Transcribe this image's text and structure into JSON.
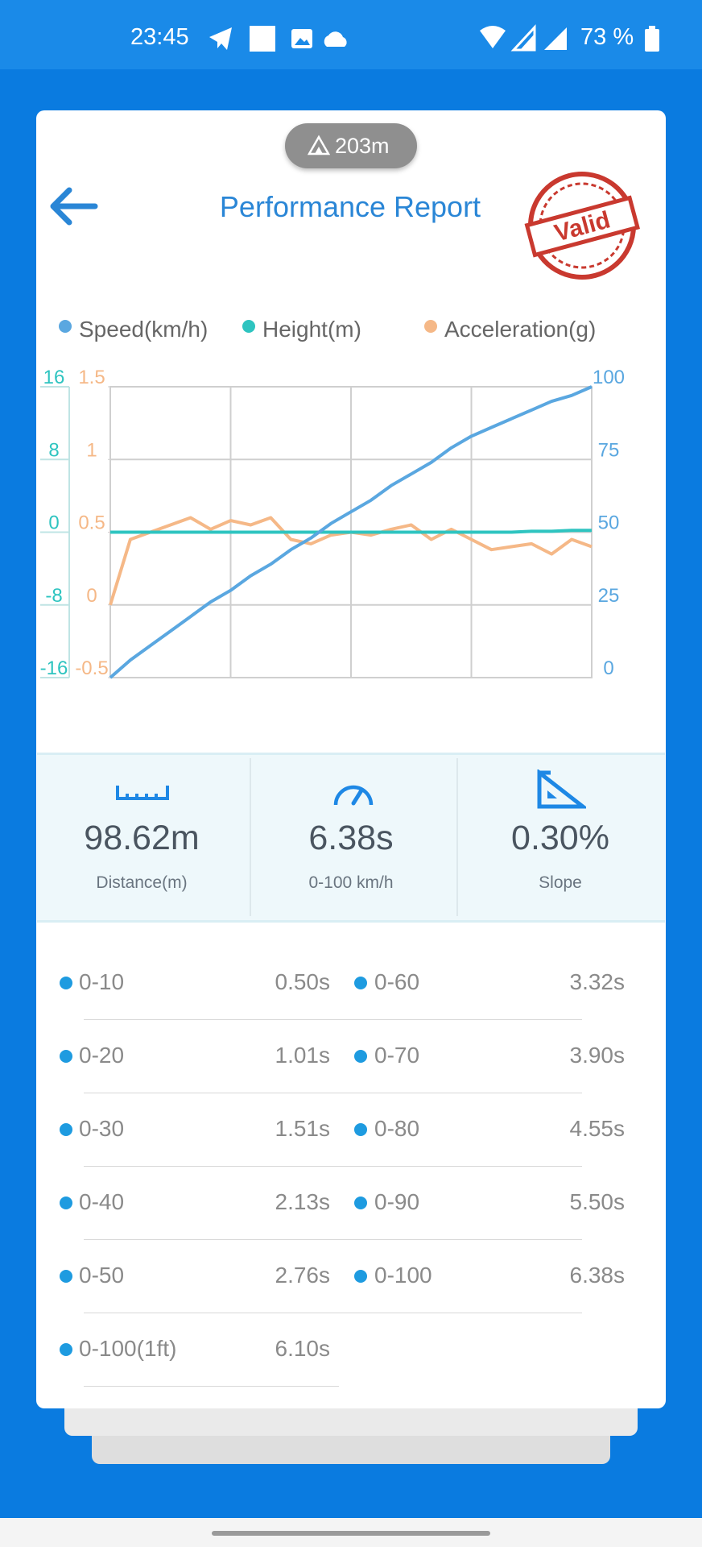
{
  "status_bar": {
    "time": "23:45",
    "battery": "73 %"
  },
  "header": {
    "altitude_badge": "203m",
    "title": "Performance Report",
    "stamp": "Valid"
  },
  "chart_data": {
    "type": "line",
    "series": [
      {
        "name": "Speed(km/h)",
        "color": "#5aa7e0",
        "axis": "y",
        "values": [
          0,
          6,
          11,
          16,
          21,
          26,
          30,
          35,
          39,
          44,
          48,
          53,
          57,
          61,
          66,
          70,
          74,
          79,
          83,
          86,
          89,
          92,
          95,
          97,
          100
        ]
      },
      {
        "name": "Height(m)",
        "color": "#2ec4c0",
        "axis": "y3",
        "values": [
          0,
          0,
          0,
          0,
          0,
          0,
          0,
          0,
          0,
          0,
          0,
          0,
          0,
          0,
          0,
          0,
          0,
          0,
          0,
          0,
          0,
          0.1,
          0.1,
          0.2,
          0.2
        ]
      },
      {
        "name": "Acceleration(g)",
        "color": "#f5b887",
        "axis": "y2",
        "values": [
          0,
          0.45,
          0.5,
          0.55,
          0.6,
          0.52,
          0.58,
          0.55,
          0.6,
          0.45,
          0.42,
          0.48,
          0.5,
          0.48,
          0.52,
          0.55,
          0.45,
          0.52,
          0.45,
          0.38,
          0.4,
          0.42,
          0.35,
          0.45,
          0.4
        ]
      }
    ],
    "ylim": [
      0,
      100
    ],
    "yticks": [
      0,
      25,
      50,
      75,
      100
    ],
    "y2lim": [
      -0.5,
      1.5
    ],
    "y2ticks": [
      -0.5,
      0,
      0.5,
      1,
      1.5
    ],
    "y3lim": [
      -16,
      16
    ],
    "y3ticks": [
      -16,
      -8,
      0,
      8,
      16
    ],
    "grid": true
  },
  "stats": [
    {
      "value": "98.62m",
      "label": "Distance(m)"
    },
    {
      "value": "6.38s",
      "label": "0-100 km/h"
    },
    {
      "value": "0.30%",
      "label": "Slope"
    }
  ],
  "splits": {
    "left": [
      {
        "label": "0-10",
        "value": "0.50s"
      },
      {
        "label": "0-20",
        "value": "1.01s"
      },
      {
        "label": "0-30",
        "value": "1.51s"
      },
      {
        "label": "0-40",
        "value": "2.13s"
      },
      {
        "label": "0-50",
        "value": "2.76s"
      },
      {
        "label": "0-100(1ft)",
        "value": "6.10s"
      }
    ],
    "right": [
      {
        "label": "0-60",
        "value": "3.32s"
      },
      {
        "label": "0-70",
        "value": "3.90s"
      },
      {
        "label": "0-80",
        "value": "4.55s"
      },
      {
        "label": "0-90",
        "value": "5.50s"
      },
      {
        "label": "0-100",
        "value": "6.38s"
      }
    ]
  }
}
